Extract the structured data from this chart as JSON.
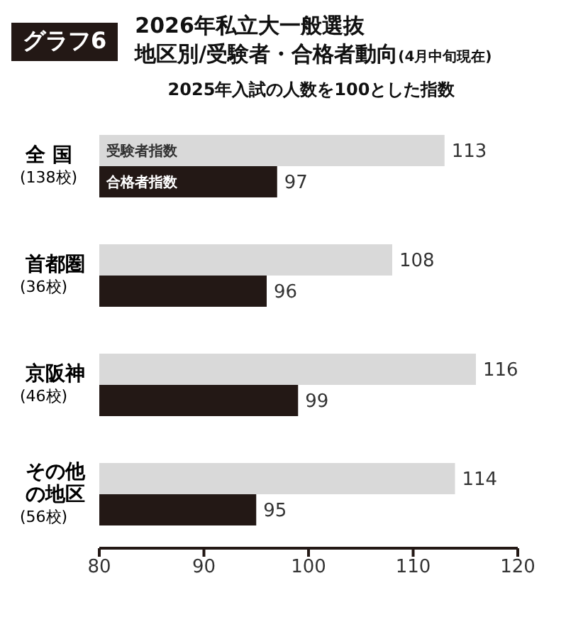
{
  "chart_data": {
    "type": "bar",
    "orientation": "horizontal",
    "title": "2026年私立大一般選抜地区別/受験者・合格者動向",
    "subtitle": "2025年入試の人数を100とした指数",
    "annotations": [
      "グラフ6",
      "(4月中旬現在)"
    ],
    "categories": [
      "全 国(138校)",
      "首都圏(36校)",
      "京阪神(46校)",
      "その他の地区(56校)"
    ],
    "series": [
      {
        "name": "受験者指数",
        "color": "#d9d9d9",
        "values": [
          113,
          108,
          116,
          114
        ]
      },
      {
        "name": "合格者指数",
        "color": "#231815",
        "values": [
          97,
          96,
          99,
          95
        ]
      }
    ],
    "xlim": [
      80,
      120
    ],
    "xticks": [
      80,
      90,
      100,
      110,
      120
    ],
    "data_labels": true,
    "grid": false,
    "legend": false
  }
}
